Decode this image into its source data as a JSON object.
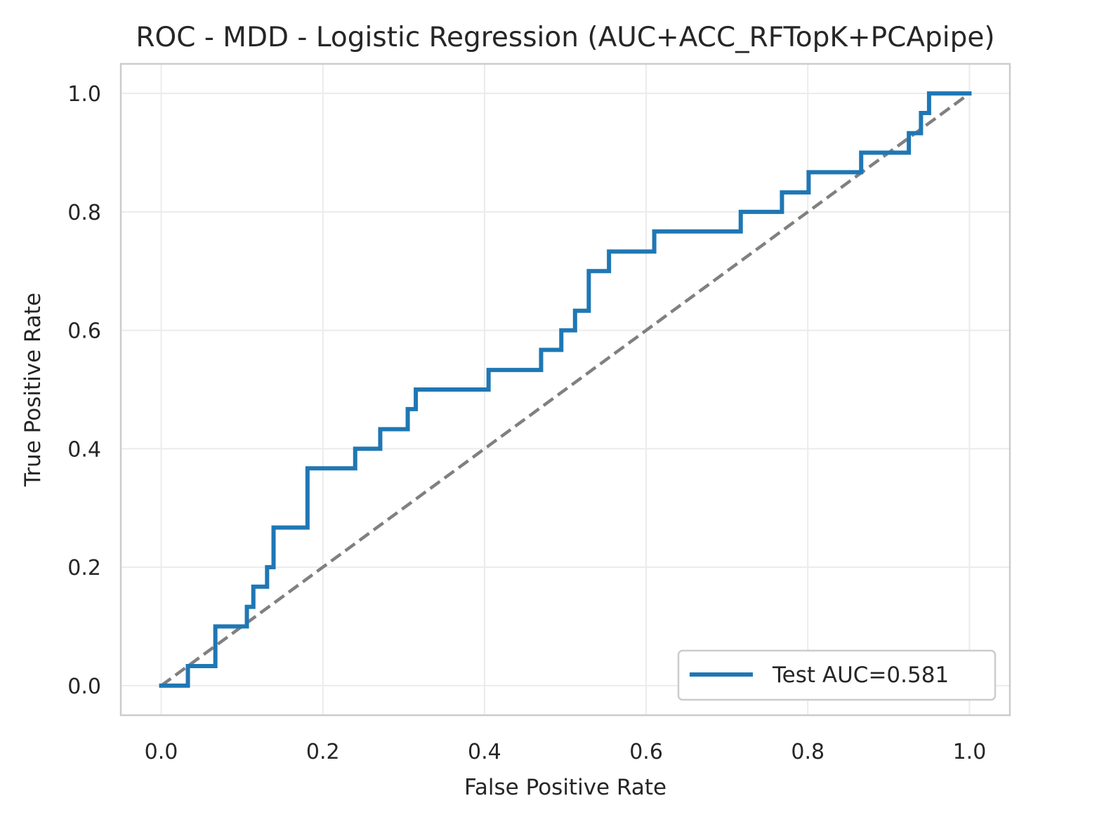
{
  "chart_data": {
    "type": "line",
    "title": "ROC - MDD - Logistic Regression (AUC+ACC_RFTopK+PCApipe)",
    "xlabel": "False Positive Rate",
    "ylabel": "True Positive Rate",
    "xlim": [
      -0.05,
      1.05
    ],
    "ylim": [
      -0.05,
      1.05
    ],
    "xticks": [
      0.0,
      0.2,
      0.4,
      0.6,
      0.8,
      1.0
    ],
    "yticks": [
      0.0,
      0.2,
      0.4,
      0.6,
      0.8,
      1.0
    ],
    "xtick_labels": [
      "0.0",
      "0.2",
      "0.4",
      "0.6",
      "0.8",
      "1.0"
    ],
    "ytick_labels": [
      "0.0",
      "0.2",
      "0.4",
      "0.6",
      "0.8",
      "1.0"
    ],
    "grid": true,
    "legend_position": "lower-right",
    "series": [
      {
        "name": "Test AUC=0.581",
        "color": "#1f77b4",
        "x": [
          0.0,
          0.033,
          0.033,
          0.067,
          0.067,
          0.106,
          0.106,
          0.114,
          0.114,
          0.131,
          0.131,
          0.139,
          0.139,
          0.181,
          0.181,
          0.24,
          0.24,
          0.271,
          0.271,
          0.305,
          0.305,
          0.315,
          0.315,
          0.405,
          0.405,
          0.47,
          0.47,
          0.495,
          0.495,
          0.512,
          0.512,
          0.529,
          0.529,
          0.554,
          0.554,
          0.61,
          0.61,
          0.717,
          0.717,
          0.768,
          0.768,
          0.801,
          0.801,
          0.866,
          0.866,
          0.925,
          0.925,
          0.94,
          0.94,
          0.95,
          0.95,
          1.0
        ],
        "y": [
          0.0,
          0.0,
          0.033,
          0.033,
          0.1,
          0.1,
          0.133,
          0.133,
          0.167,
          0.167,
          0.2,
          0.2,
          0.267,
          0.267,
          0.367,
          0.367,
          0.4,
          0.4,
          0.433,
          0.433,
          0.467,
          0.467,
          0.5,
          0.5,
          0.533,
          0.533,
          0.567,
          0.567,
          0.6,
          0.6,
          0.633,
          0.633,
          0.7,
          0.7,
          0.733,
          0.733,
          0.767,
          0.767,
          0.8,
          0.8,
          0.833,
          0.833,
          0.867,
          0.867,
          0.9,
          0.9,
          0.933,
          0.933,
          0.967,
          0.967,
          1.0,
          1.0
        ]
      }
    ],
    "reference_line": {
      "x": [
        0.0,
        1.0
      ],
      "y": [
        0.0,
        1.0
      ],
      "style": "dashed",
      "color": "#808080"
    },
    "colors": {
      "axes_edge": "#cccccc",
      "grid": "#ebebeb",
      "text": "#262626",
      "legend_edge": "#cccccc"
    }
  }
}
